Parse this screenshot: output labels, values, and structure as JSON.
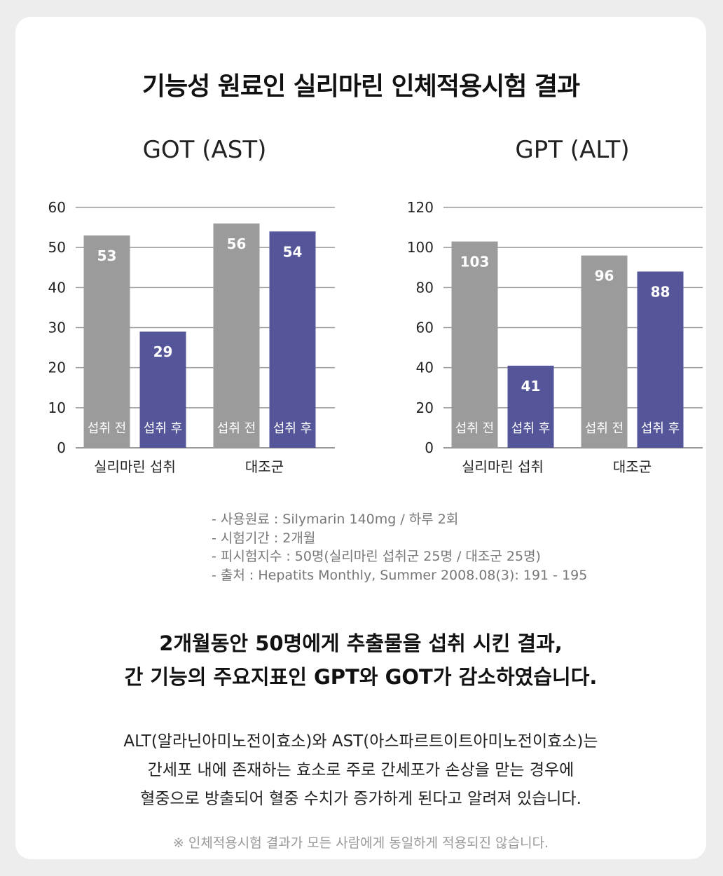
{
  "page_title": "기능성 원료인 실리마린 인체적용시험 결과",
  "chart_data": [
    {
      "type": "bar",
      "title": "GOT (AST)",
      "categories": [
        "실리마린 섭취",
        "대조군"
      ],
      "bar_labels": [
        "섭취 전",
        "섭취 후"
      ],
      "values": [
        [
          53,
          29
        ],
        [
          56,
          54
        ]
      ],
      "ylim": [
        0,
        60
      ],
      "yticks": [
        0,
        10,
        20,
        30,
        40,
        50,
        60
      ],
      "grid": true,
      "colors": {
        "before": "#9b9b9b",
        "after": "#55569a"
      }
    },
    {
      "type": "bar",
      "title": "GPT (ALT)",
      "categories": [
        "실리마린 섭취",
        "대조군"
      ],
      "bar_labels": [
        "섭취 전",
        "섭취 후"
      ],
      "values": [
        [
          103,
          41
        ],
        [
          96,
          88
        ]
      ],
      "ylim": [
        0,
        120
      ],
      "yticks": [
        0,
        20,
        40,
        60,
        80,
        100,
        120
      ],
      "grid": true,
      "colors": {
        "before": "#9b9b9b",
        "after": "#55569a"
      }
    }
  ],
  "notes": [
    "- 사용원료 : Silymarin 140mg / 하루 2회",
    "- 시험기간 : 2개월",
    "- 피시험지수 : 50명(실리마린 섭취군 25명 / 대조군 25명)",
    "- 출처 : Hepatits Monthly, Summer 2008.08(3): 191 - 195"
  ],
  "headline": {
    "line1": "2개월동안 50명에게 추출물을 섭취 시킨 결과,",
    "line2": "간 기능의 주요지표인 GPT와 GOT가 감소하였습니다."
  },
  "body": {
    "line1": "ALT(알라닌아미노전이효소)와 AST(아스파르트이트아미노전이효소)는",
    "line2": "간세포 내에 존재하는 효소로 주로 간세포가 손상을 맏는 경우에",
    "line3": "혈중으로 방출되어 혈중 수치가 증가하게 된다고 알려져 있습니다."
  },
  "footnote": "※ 인체적용시험 결과가 모든 사람에게 동일하게 적용되진 않습니다."
}
